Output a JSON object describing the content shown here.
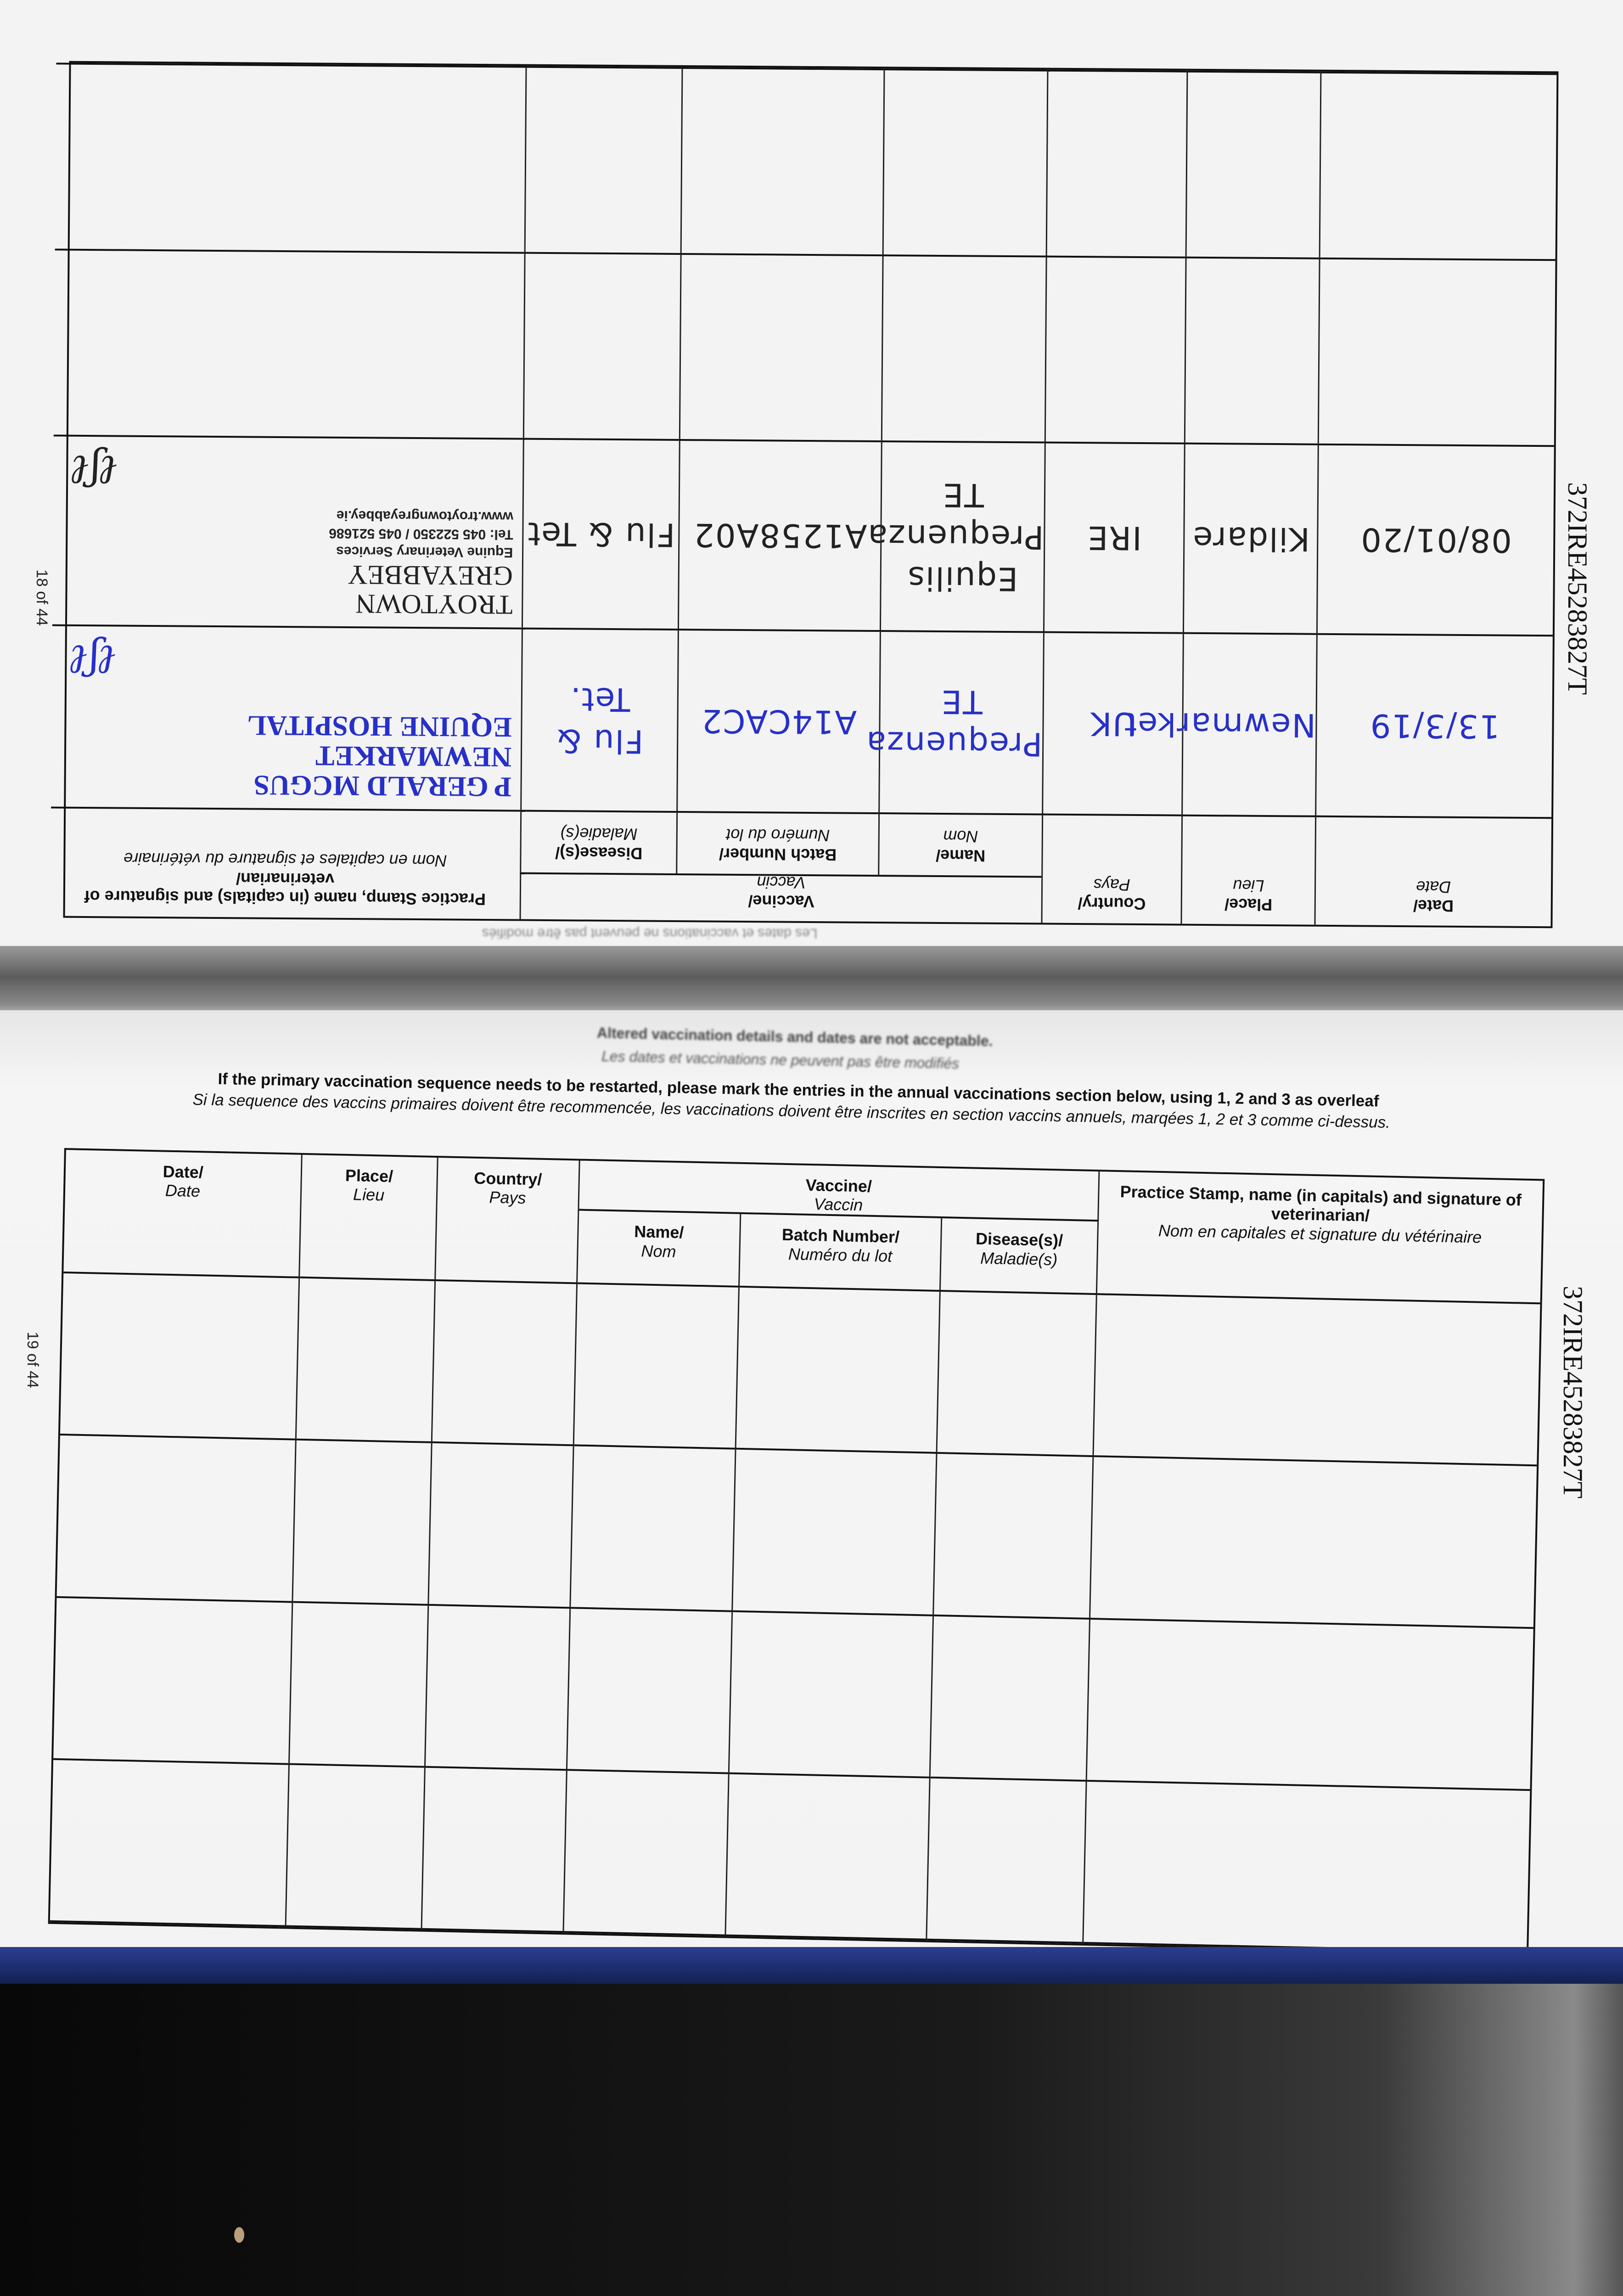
{
  "passport_number": "372IRE45283827T",
  "top_page": {
    "page_number": "18 of 44",
    "footer_note": "Les dates et vaccinations ne peuvent pas être modifiés",
    "entries": [
      {
        "date": "13/3/19",
        "place": "Newmarket",
        "country": "UK",
        "vaccine_name": "Prequenza TE",
        "batch_number": "A14CAC2",
        "diseases": "Flu & Tet.",
        "stamp_lines": [
          "P GERALD MCGUS",
          "NEWMARKET",
          "EQUINE HOSPITAL"
        ],
        "ink": "blue"
      },
      {
        "date": "08/01/20",
        "place": "Kildare",
        "country": "IRE",
        "vaccine_name": "Equilis Prequenza TE",
        "batch_number": "A1258A02",
        "diseases": "Flu & Tet",
        "stamp_lines": [
          "TROYTOWN",
          "GREYABBEY",
          "Equine Veterinary Services",
          "Tel: 045 522350 / 045 521686",
          "www.troytowngreyabbey.ie"
        ],
        "ink": "black"
      },
      {
        "date": "",
        "place": "",
        "country": "",
        "vaccine_name": "",
        "batch_number": "",
        "diseases": "",
        "stamp_lines": []
      },
      {
        "date": "",
        "place": "",
        "country": "",
        "vaccine_name": "",
        "batch_number": "",
        "diseases": "",
        "stamp_lines": []
      }
    ]
  },
  "bottom_page": {
    "page_number": "19 of 44",
    "warning_en": "Altered vaccination details and dates are not acceptable.",
    "warning_fr": "Les dates et vaccinations ne peuvent pas être modifiés",
    "instruction_en": "If the primary vaccination sequence needs to be restarted, please mark the entries in the annual vaccinations section below, using 1, 2 and 3 as overleaf",
    "instruction_fr": "Si la sequence des vaccins primaires doivent être recommencée, les vaccinations doivent être inscrites en section vaccins annuels, marqées 1, 2 et 3 comme ci-dessus.",
    "entries": [
      {
        "date": "",
        "place": "",
        "country": "",
        "vaccine_name": "",
        "batch_number": "",
        "diseases": "",
        "stamp_lines": []
      },
      {
        "date": "",
        "place": "",
        "country": "",
        "vaccine_name": "",
        "batch_number": "",
        "diseases": "",
        "stamp_lines": []
      },
      {
        "date": "",
        "place": "",
        "country": "",
        "vaccine_name": "",
        "batch_number": "",
        "diseases": "",
        "stamp_lines": []
      },
      {
        "date": "",
        "place": "",
        "country": "",
        "vaccine_name": "",
        "batch_number": "",
        "diseases": "",
        "stamp_lines": []
      }
    ]
  },
  "headers": {
    "date": {
      "en": "Date/",
      "fr": "Date"
    },
    "place": {
      "en": "Place/",
      "fr": "Lieu"
    },
    "country": {
      "en": "Country/",
      "fr": "Pays"
    },
    "vaccine": {
      "en": "Vaccine/",
      "fr": "Vaccin"
    },
    "vaccine_name": {
      "en": "Name/",
      "fr": "Nom"
    },
    "batch_number": {
      "en": "Batch Number/",
      "fr": "Numéro du lot"
    },
    "diseases": {
      "en": "Disease(s)/",
      "fr": "Maladie(s)"
    },
    "stamp": {
      "en": "Practice Stamp, name (in capitals) and signature of veterinarian/",
      "fr": "Nom en capitales et signature du vétérinaire"
    }
  },
  "colors": {
    "blue_ink": "#2730c8",
    "binding": "#1d2c6e"
  }
}
